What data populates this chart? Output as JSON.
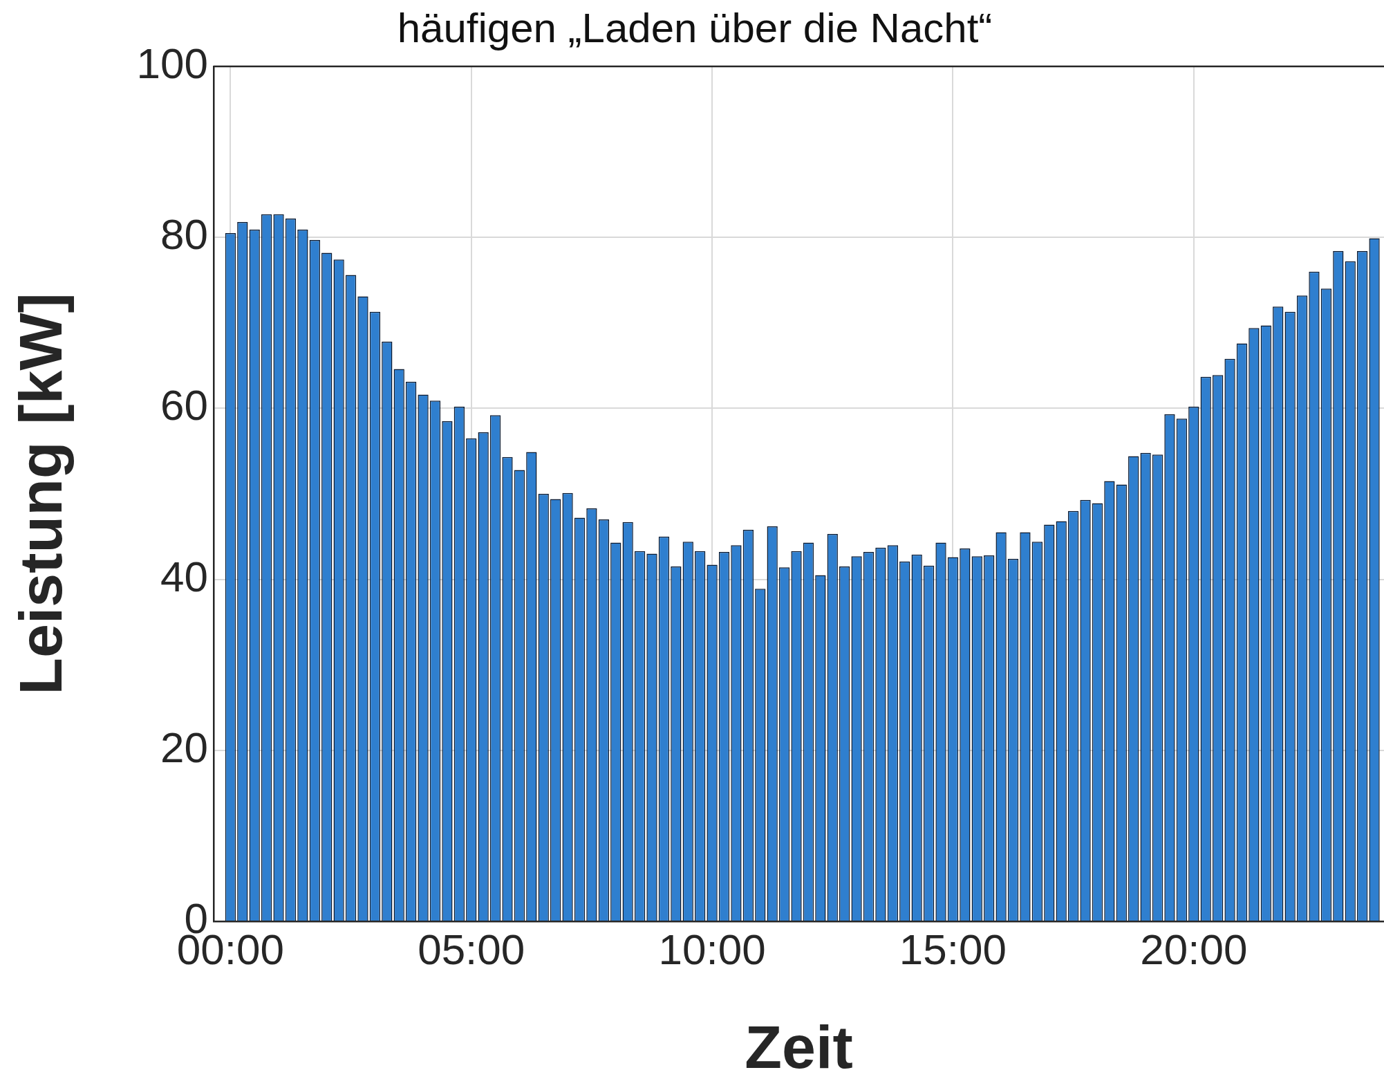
{
  "chart_data": {
    "type": "bar",
    "title": "häufigen „Laden über die Nacht“",
    "xlabel": "Zeit",
    "ylabel": "Leistung [kW]",
    "x": [
      0,
      0.25,
      0.5,
      0.75,
      1,
      1.25,
      1.5,
      1.75,
      2,
      2.25,
      2.5,
      2.75,
      3,
      3.25,
      3.5,
      3.75,
      4,
      4.25,
      4.5,
      4.75,
      5,
      5.25,
      5.5,
      5.75,
      6,
      6.25,
      6.5,
      6.75,
      7,
      7.25,
      7.5,
      7.75,
      8,
      8.25,
      8.5,
      8.75,
      9,
      9.25,
      9.5,
      9.75,
      10,
      10.25,
      10.5,
      10.75,
      11,
      11.25,
      11.5,
      11.75,
      12,
      12.25,
      12.5,
      12.75,
      13,
      13.25,
      13.5,
      13.75,
      14,
      14.25,
      14.5,
      14.75,
      15,
      15.25,
      15.5,
      15.75,
      16,
      16.25,
      16.5,
      16.75,
      17,
      17.25,
      17.5,
      17.75,
      18,
      18.25,
      18.5,
      18.75,
      19,
      19.25,
      19.5,
      19.75,
      20,
      20.25,
      20.5,
      20.75,
      21,
      21.25,
      21.5,
      21.75,
      22,
      22.25,
      22.5,
      22.75,
      23,
      23.25,
      23.5,
      23.75
    ],
    "values": [
      80.5,
      81.8,
      80.9,
      82.7,
      82.7,
      82.2,
      80.9,
      79.7,
      78.2,
      77.4,
      75.6,
      73.1,
      71.3,
      67.8,
      64.6,
      63.1,
      61.6,
      60.9,
      58.5,
      60.2,
      56.5,
      57.2,
      59.2,
      54.3,
      52.8,
      54.9,
      50.0,
      49.4,
      50.1,
      47.2,
      48.3,
      47.0,
      44.3,
      46.7,
      43.3,
      43.0,
      45.0,
      41.5,
      44.4,
      43.3,
      41.7,
      43.2,
      44.0,
      45.8,
      38.9,
      46.2,
      41.4,
      43.3,
      44.3,
      40.5,
      45.3,
      41.5,
      42.7,
      43.2,
      43.7,
      44.0,
      42.1,
      42.9,
      41.6,
      44.3,
      42.6,
      43.6,
      42.7,
      42.8,
      45.5,
      42.4,
      45.5,
      44.4,
      46.4,
      46.8,
      48.0,
      49.3,
      48.9,
      51.5,
      51.1,
      54.4,
      54.8,
      54.6,
      59.3,
      58.8,
      60.2,
      63.7,
      63.9,
      65.8,
      67.6,
      69.4,
      69.7,
      71.9,
      71.3,
      73.2,
      76.0,
      74.0,
      78.4,
      77.2,
      78.4,
      79.9
    ],
    "color": "#2f7fcf",
    "xlim": [
      -0.35,
      23.95
    ],
    "xticks": [
      {
        "value": 0,
        "label": "00:00"
      },
      {
        "value": 5,
        "label": "05:00"
      },
      {
        "value": 10,
        "label": "10:00"
      },
      {
        "value": 15,
        "label": "15:00"
      },
      {
        "value": 20,
        "label": "20:00"
      }
    ],
    "ylim": [
      0,
      100
    ],
    "yticks": [
      0,
      20,
      40,
      60,
      80,
      100
    ],
    "grid": true
  }
}
